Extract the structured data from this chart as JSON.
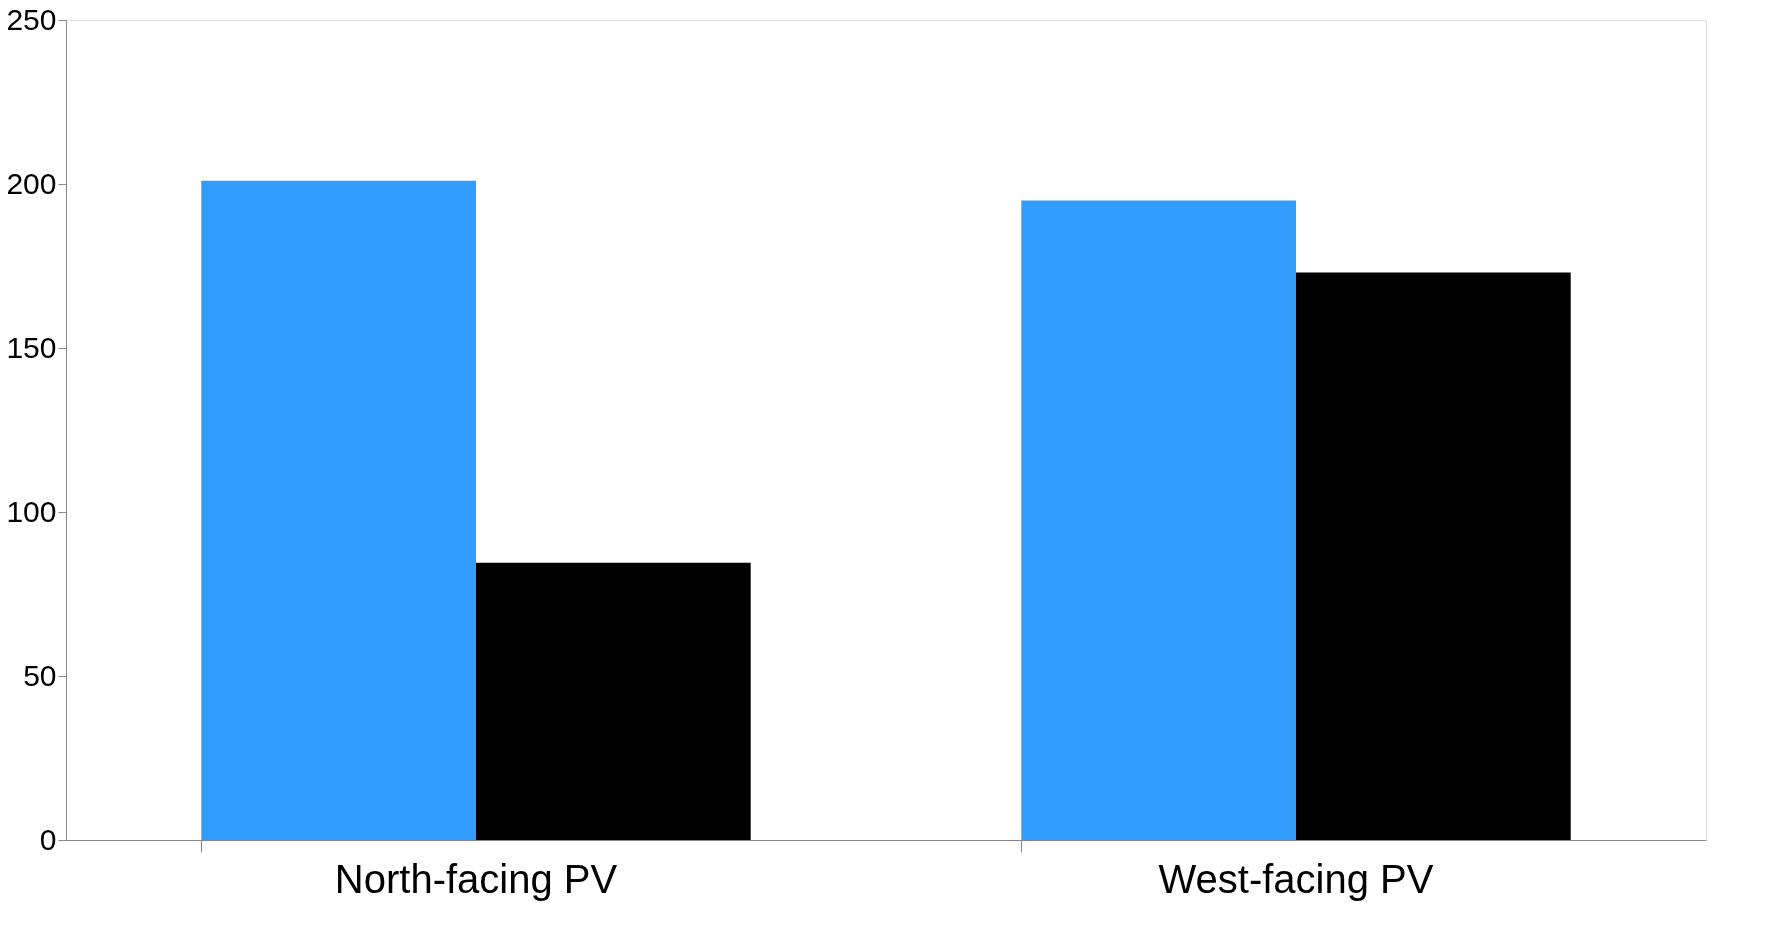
{
  "chart_data": {
    "type": "bar",
    "categories": [
      "North-facing PV",
      "West-facing PV"
    ],
    "series": [
      {
        "color": "#339dff",
        "values": [
          201,
          195
        ]
      },
      {
        "color": "#000000",
        "values": [
          84.5,
          173
        ]
      }
    ],
    "ylim": [
      0,
      250
    ],
    "yticks": [
      0,
      50,
      100,
      150,
      200,
      250
    ],
    "grid": false,
    "legend": false
  }
}
